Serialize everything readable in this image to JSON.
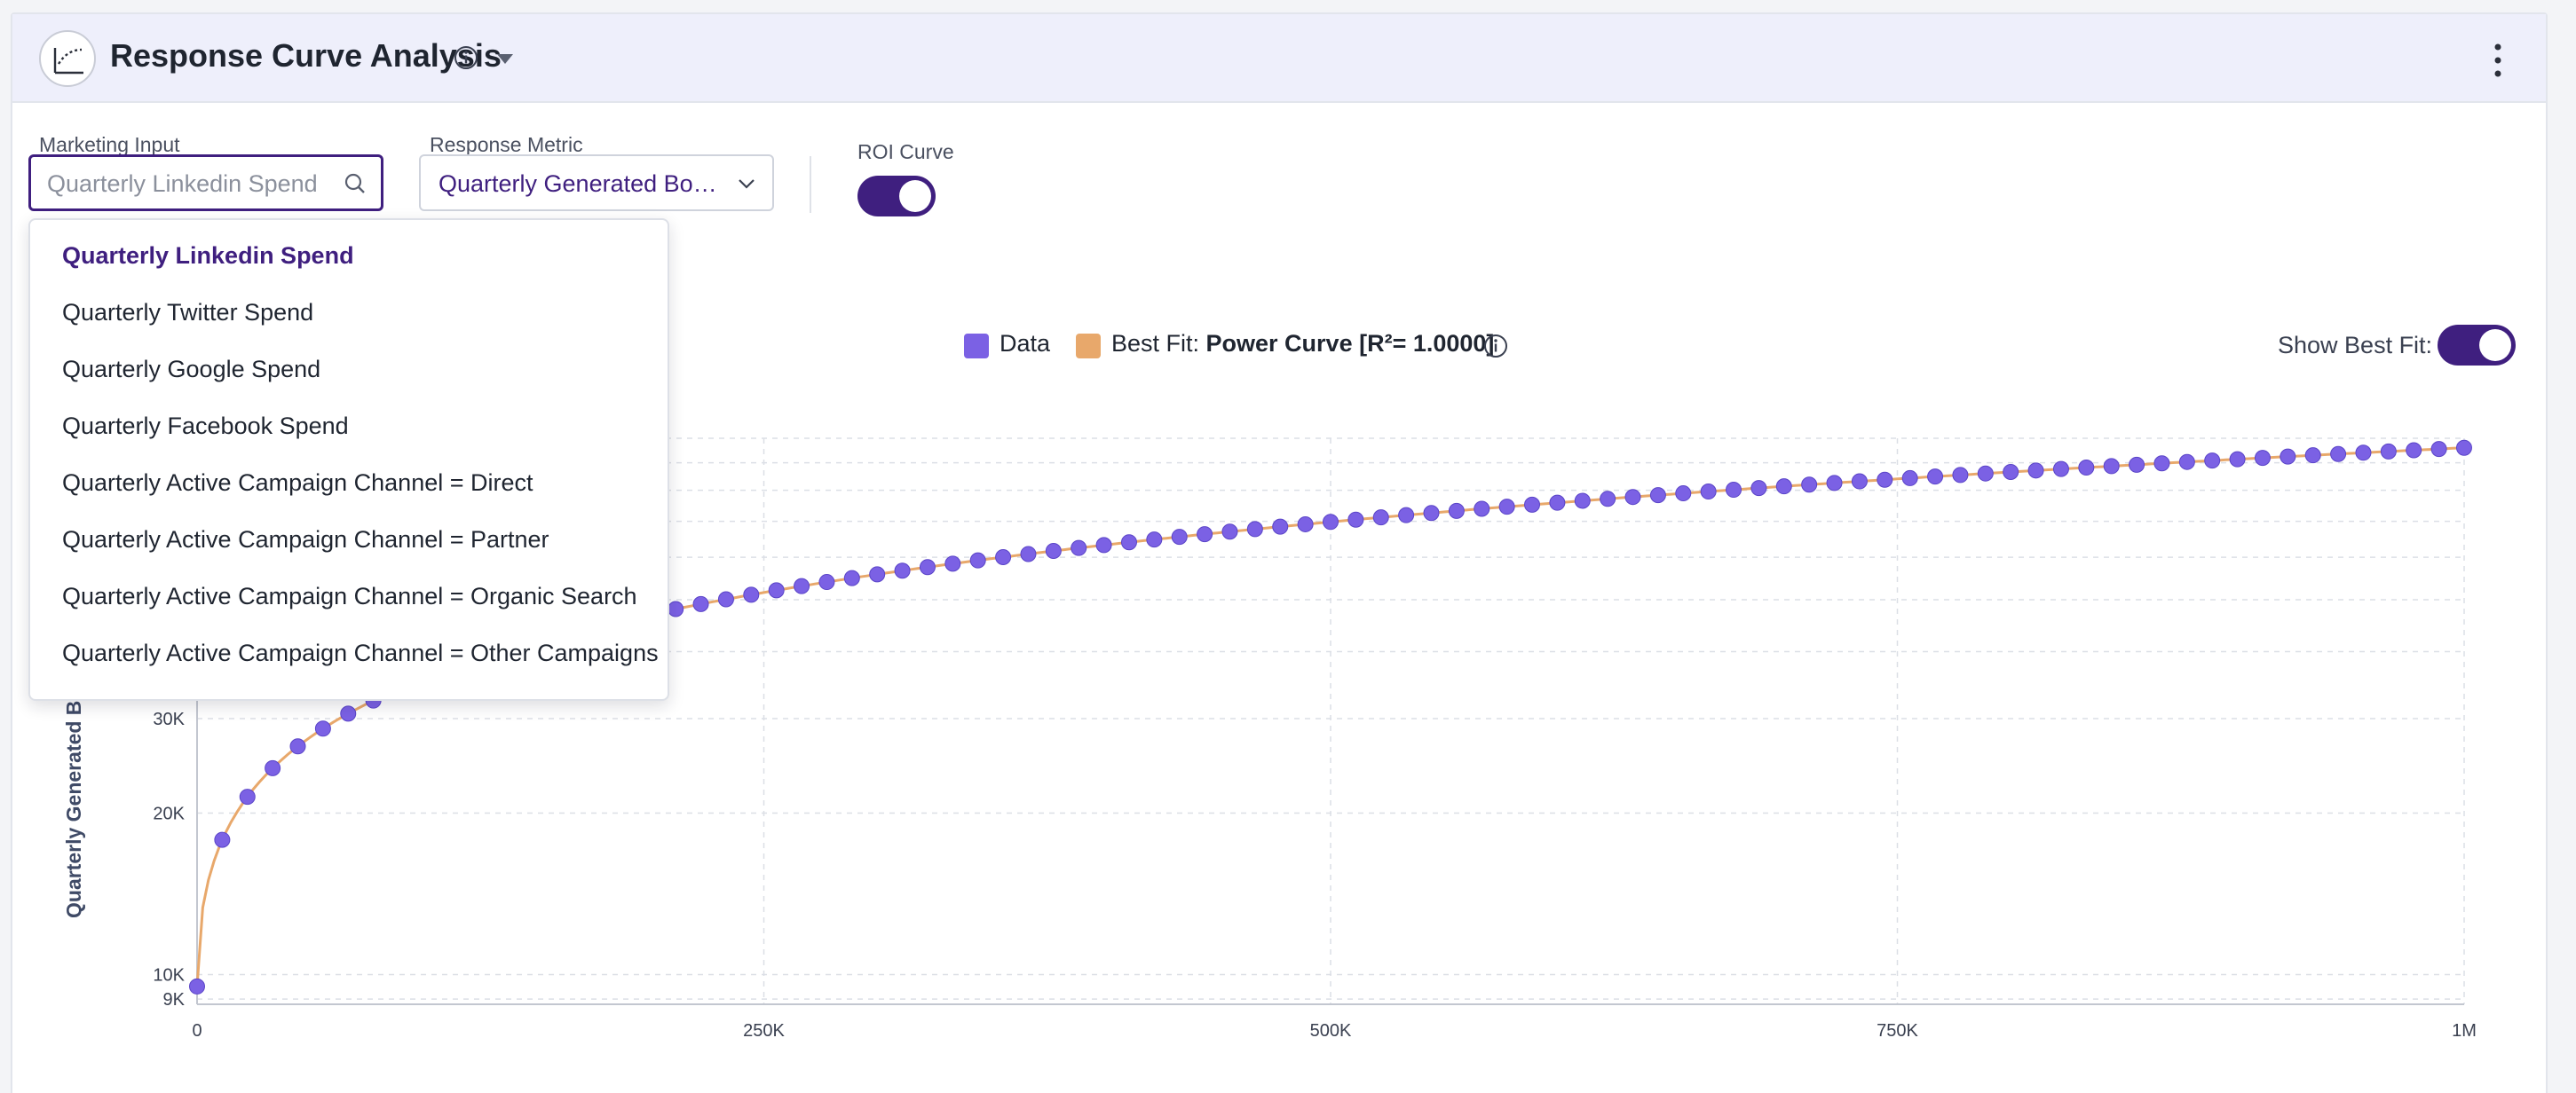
{
  "header": {
    "title": "Response Curve Analysis",
    "icons": {
      "logo": "response-curve-icon",
      "info": "info-icon",
      "caret": "caret-down-icon",
      "menu": "kebab-menu-icon"
    }
  },
  "controls": {
    "marketing_input": {
      "label": "Marketing Input",
      "placeholder": "Quarterly Linkedin Spend",
      "icon": "search-icon"
    },
    "response_metric": {
      "label": "Response Metric",
      "value": "Quarterly Generated Bookings"
    },
    "roi_curve": {
      "label": "ROI Curve",
      "on": true
    }
  },
  "dropdown": {
    "items": [
      "Quarterly Linkedin Spend",
      "Quarterly Twitter Spend",
      "Quarterly Google Spend",
      "Quarterly Facebook Spend",
      "Quarterly Active Campaign Channel = Direct",
      "Quarterly Active Campaign Channel = Partner",
      "Quarterly Active Campaign Channel = Organic Search",
      "Quarterly Active Campaign Channel = Other Campaigns"
    ],
    "selected_index": 0
  },
  "legend": {
    "data_label": "Data",
    "fit_prefix": "Best Fit: ",
    "fit_name": "Power Curve [R²= 1.0000]",
    "show_best_fit_label": "Show Best Fit:",
    "show_best_fit_on": true
  },
  "colors": {
    "accent": "#3f1f7f",
    "data_point": "#7b61e4",
    "data_point_stroke": "#5b45c8",
    "best_fit": "#e8a86b"
  },
  "chart_data": {
    "type": "scatter",
    "ylabel": "Quarterly Generated Boo",
    "x_ticks": [
      {
        "value": 0,
        "label": "0"
      },
      {
        "value": 250000,
        "label": "250K"
      },
      {
        "value": 500000,
        "label": "500K"
      },
      {
        "value": 750000,
        "label": "750K"
      },
      {
        "value": 1000000,
        "label": "1M"
      }
    ],
    "y_ticks": [
      {
        "value": 9000,
        "label": "9K"
      },
      {
        "value": 10000,
        "label": "10K"
      },
      {
        "value": 20000,
        "label": "20K"
      },
      {
        "value": 30000,
        "label": "30K"
      }
    ],
    "xlim": [
      0,
      1000000
    ],
    "y_scale": "log",
    "ylim": [
      8800,
      100000
    ],
    "grid": true,
    "legend_position": "top-center",
    "series": [
      {
        "name": "Data",
        "kind": "points",
        "x_start": 0,
        "x_step": 11111,
        "count": 91,
        "y_first": 9500,
        "y_last": 96000
      },
      {
        "name": "Best Fit",
        "kind": "line",
        "fit": "Power Curve"
      }
    ]
  }
}
